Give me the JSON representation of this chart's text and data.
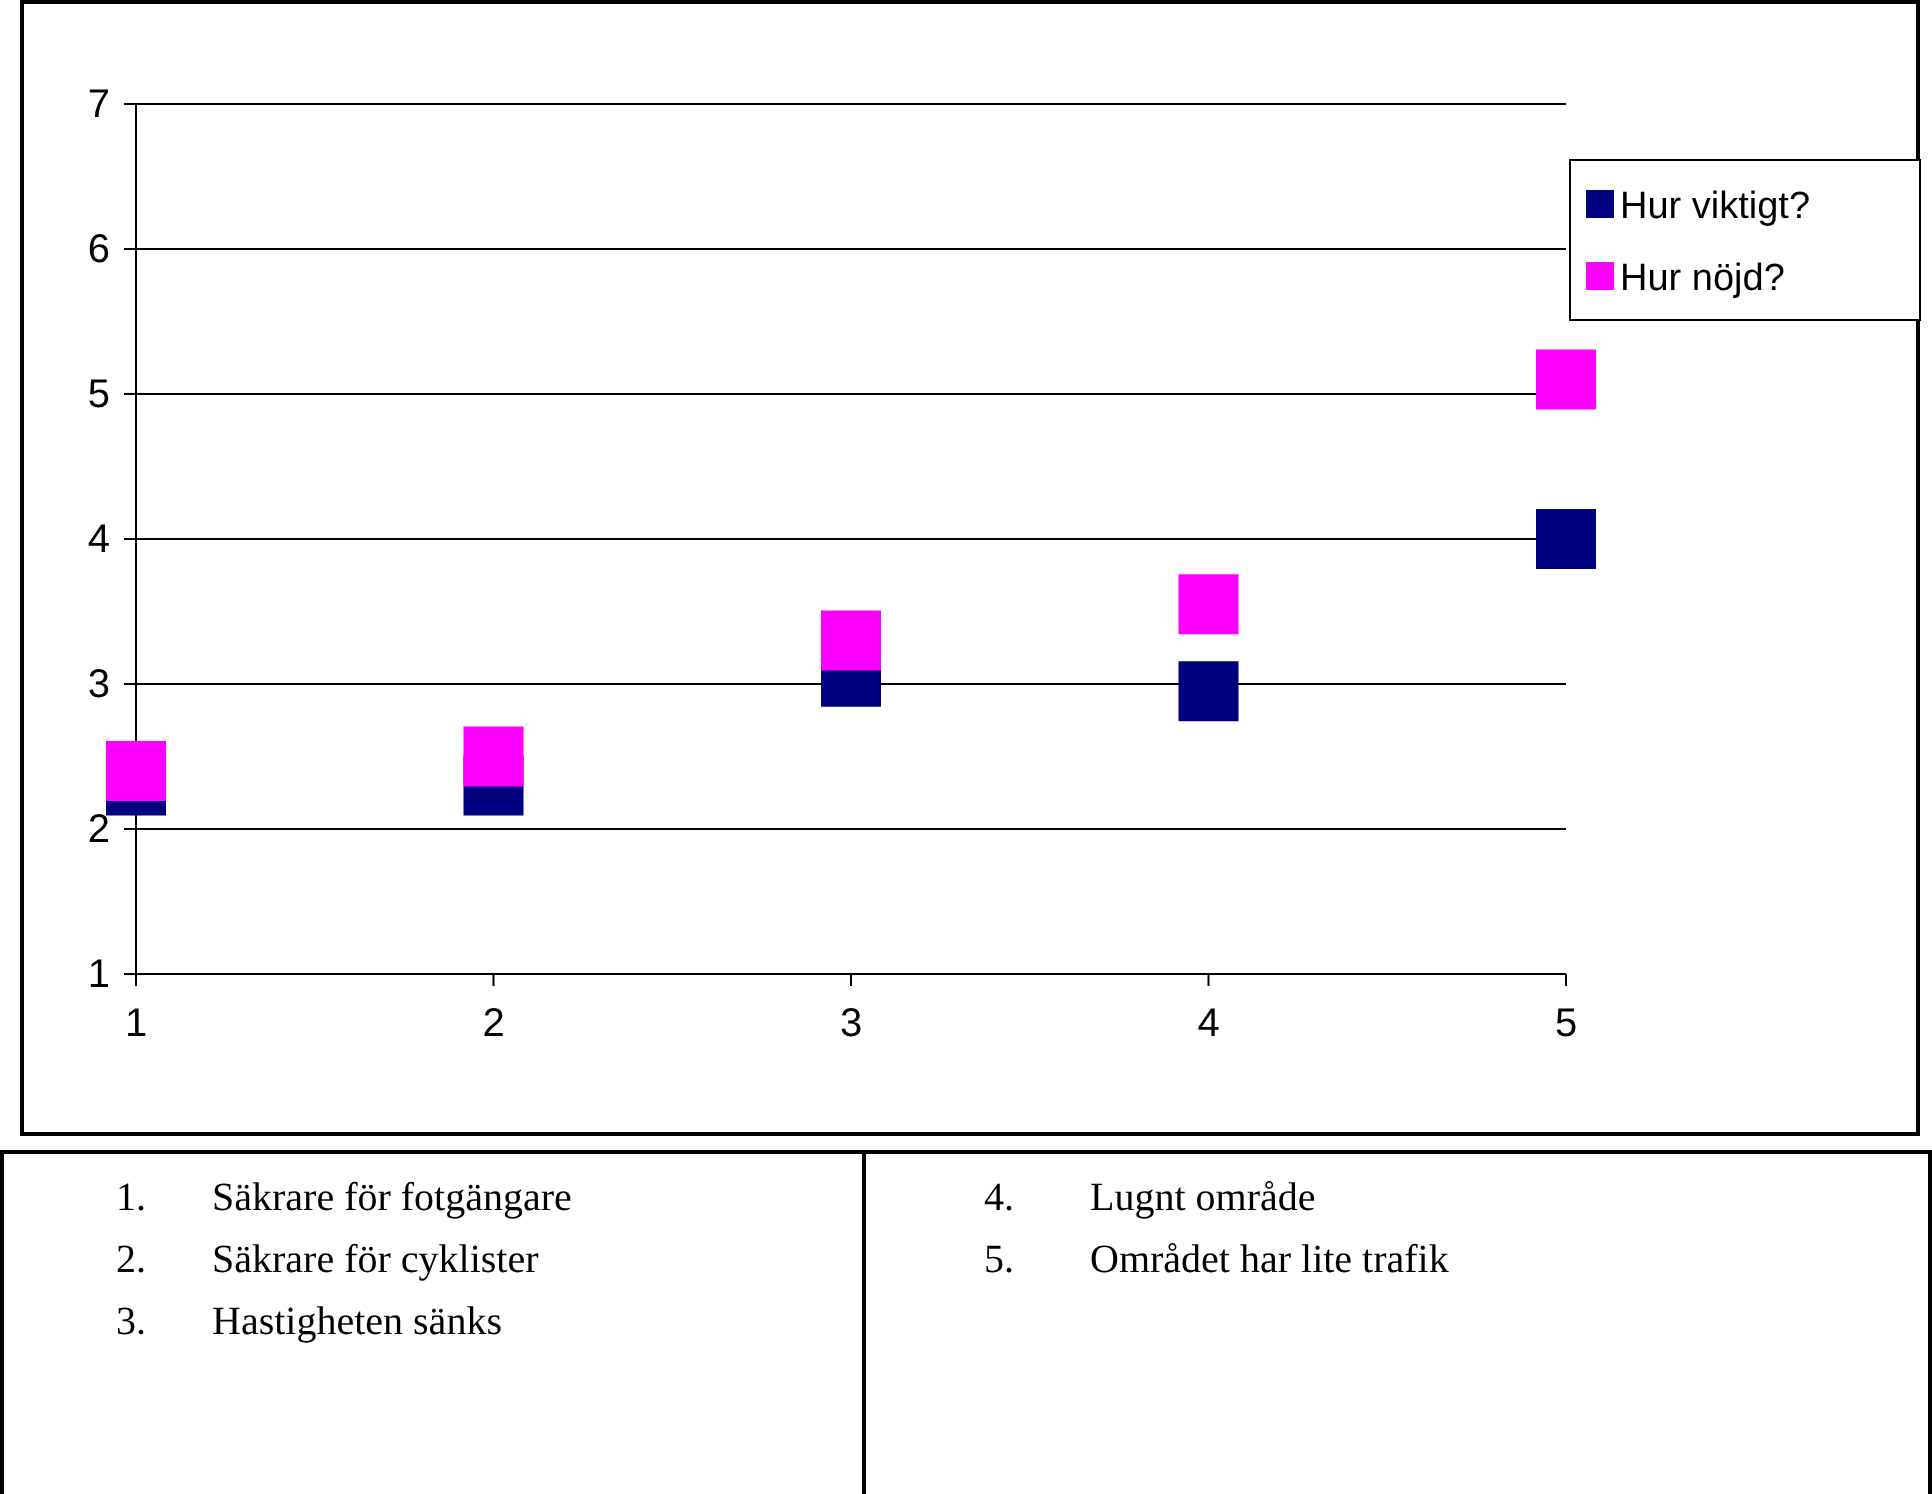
{
  "chart_data": {
    "type": "scatter",
    "x": [
      1,
      2,
      3,
      4,
      5
    ],
    "xlim": [
      1,
      5
    ],
    "xticks": [
      1,
      2,
      3,
      4,
      5
    ],
    "ylim": [
      1,
      7
    ],
    "yticks": [
      1,
      2,
      3,
      4,
      5,
      6,
      7
    ],
    "grid": "y",
    "legend": "right",
    "marker": "square",
    "series": [
      {
        "name": "Hur viktigt?",
        "color": "#000080",
        "values": [
          2.3,
          2.3,
          3.05,
          2.95,
          4.0
        ]
      },
      {
        "name": "Hur nöjd?",
        "color": "#ff00ff",
        "values": [
          2.4,
          2.5,
          3.3,
          3.55,
          5.1
        ]
      }
    ],
    "annotations": [
      "1. Säkrare för fotgängare",
      "2. Säkrare för cyklister",
      "3. Hastigheten sänks",
      "4. Lugnt område",
      "5. Området har lite trafik"
    ]
  }
}
